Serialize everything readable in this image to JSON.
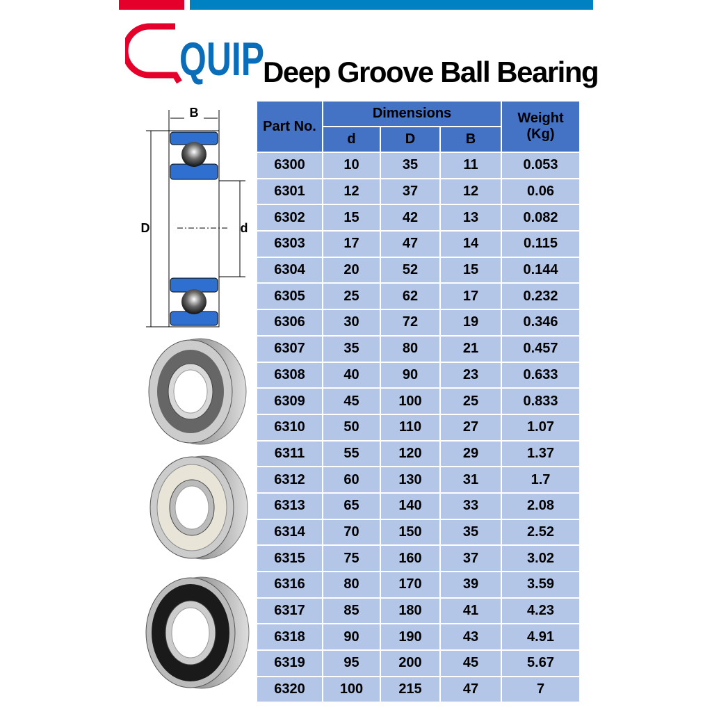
{
  "brand": {
    "logo_text": "QUIP",
    "colors": {
      "red": "#e4002b",
      "blue": "#0081c1",
      "header": "#4472c4",
      "cell": "#b4c6e7"
    }
  },
  "title": "Deep Groove Ball Bearing",
  "diagram": {
    "label_B": "B",
    "label_D": "D",
    "label_d": "d"
  },
  "table": {
    "headers": {
      "part": "Part No.",
      "dimensions": "Dimensions",
      "d": "d",
      "D": "D",
      "B": "B",
      "weight": "Weight (Kg)"
    },
    "rows": [
      [
        "6300",
        "10",
        "35",
        "11",
        "0.053"
      ],
      [
        "6301",
        "12",
        "37",
        "12",
        "0.06"
      ],
      [
        "6302",
        "15",
        "42",
        "13",
        "0.082"
      ],
      [
        "6303",
        "17",
        "47",
        "14",
        "0.115"
      ],
      [
        "6304",
        "20",
        "52",
        "15",
        "0.144"
      ],
      [
        "6305",
        "25",
        "62",
        "17",
        "0.232"
      ],
      [
        "6306",
        "30",
        "72",
        "19",
        "0.346"
      ],
      [
        "6307",
        "35",
        "80",
        "21",
        "0.457"
      ],
      [
        "6308",
        "40",
        "90",
        "23",
        "0.633"
      ],
      [
        "6309",
        "45",
        "100",
        "25",
        "0.833"
      ],
      [
        "6310",
        "50",
        "110",
        "27",
        "1.07"
      ],
      [
        "6311",
        "55",
        "120",
        "29",
        "1.37"
      ],
      [
        "6312",
        "60",
        "130",
        "31",
        "1.7"
      ],
      [
        "6313",
        "65",
        "140",
        "33",
        "2.08"
      ],
      [
        "6314",
        "70",
        "150",
        "35",
        "2.52"
      ],
      [
        "6315",
        "75",
        "160",
        "37",
        "3.02"
      ],
      [
        "6316",
        "80",
        "170",
        "39",
        "3.59"
      ],
      [
        "6317",
        "85",
        "180",
        "41",
        "4.23"
      ],
      [
        "6318",
        "90",
        "190",
        "43",
        "4.91"
      ],
      [
        "6319",
        "95",
        "200",
        "45",
        "5.67"
      ],
      [
        "6320",
        "100",
        "215",
        "47",
        "7"
      ]
    ]
  }
}
